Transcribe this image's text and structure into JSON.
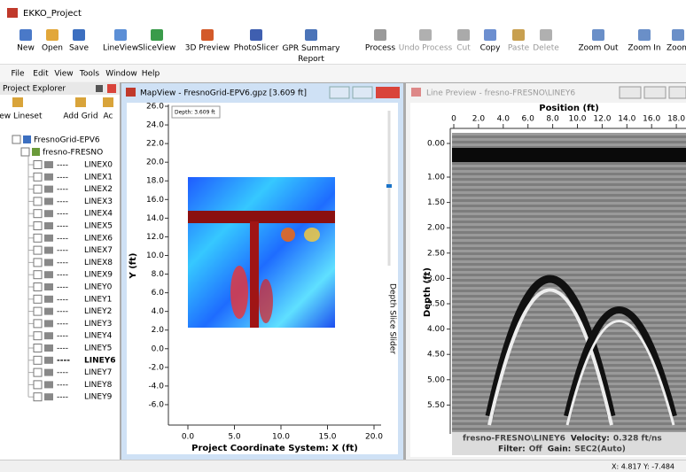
{
  "window": {
    "title": "EKKO_Project"
  },
  "toolbar": [
    "New",
    "Open",
    "Save",
    "LineView",
    "SliceView",
    "3D Preview",
    "PhotoSlicer",
    "GPR Summary Report",
    "Process",
    "Undo Process",
    "Cut",
    "Copy",
    "Paste",
    "Delete",
    "Zoom Out",
    "Zoom In",
    "Zoom"
  ],
  "menu": [
    "File",
    "Edit",
    "View",
    "Tools",
    "Window",
    "Help"
  ],
  "explorer": {
    "title": "Project Explorer",
    "buttons": [
      "New Lineset",
      "Add Grid",
      "Ac"
    ],
    "root": "FresnoGrid-EPV6",
    "group": "fresno-FRESNO",
    "lines": [
      {
        "status": "----",
        "name": "LINEX0"
      },
      {
        "status": "----",
        "name": "LINEX1"
      },
      {
        "status": "----",
        "name": "LINEX2"
      },
      {
        "status": "----",
        "name": "LINEX3"
      },
      {
        "status": "----",
        "name": "LINEX4"
      },
      {
        "status": "----",
        "name": "LINEX5"
      },
      {
        "status": "----",
        "name": "LINEX6"
      },
      {
        "status": "----",
        "name": "LINEX7"
      },
      {
        "status": "----",
        "name": "LINEX8"
      },
      {
        "status": "----",
        "name": "LINEX9"
      },
      {
        "status": "----",
        "name": "LINEY0"
      },
      {
        "status": "----",
        "name": "LINEY1"
      },
      {
        "status": "----",
        "name": "LINEY2"
      },
      {
        "status": "----",
        "name": "LINEY3"
      },
      {
        "status": "----",
        "name": "LINEY4"
      },
      {
        "status": "----",
        "name": "LINEY5"
      },
      {
        "status": "----",
        "name": "LINEY6",
        "bold": true
      },
      {
        "status": "----",
        "name": "LINEY7"
      },
      {
        "status": "----",
        "name": "LINEY8"
      },
      {
        "status": "----",
        "name": "LINEY9"
      }
    ]
  },
  "mapview": {
    "title": "MapView - FresnoGrid-EPV6.gpz [3.609 ft]",
    "depth_label": "Depth: 3.609 ft",
    "yticks": [
      "26.0",
      "24.0",
      "22.0",
      "20.0",
      "18.0",
      "16.0",
      "14.0",
      "12.0",
      "10.0",
      "8.0",
      "6.0",
      "4.0",
      "2.0",
      "0.0",
      "-2.0",
      "-4.0",
      "-6.0"
    ],
    "xticks": [
      "0.0",
      "5.0",
      "10.0",
      "15.0",
      "20.0"
    ],
    "ylabel": "Y (ft)",
    "xlabel": "Project Coordinate System: X (ft)",
    "slider_label": "Depth Slice Slider"
  },
  "line_preview": {
    "title": "Line Preview - fresno-FRESNO\\LINEY6",
    "xlabel": "Position (ft)",
    "xticks": [
      "0",
      "2.0",
      "4.0",
      "6.0",
      "8.0",
      "10.0",
      "12.0",
      "14.0",
      "16.0",
      "18.0"
    ],
    "ylabel": "Depth (ft)",
    "yticks": [
      "0.00",
      "1.00",
      "1.50",
      "2.00",
      "2.50",
      "3.00",
      "3.50",
      "4.00",
      "4.50",
      "5.00",
      "5.50"
    ],
    "footer": {
      "line": "fresno-FRESNO\\LINEY6",
      "velocity_label": "Velocity:",
      "velocity": "0.328 ft/ns",
      "filter_label": "Filter:",
      "filter": "Off",
      "gain_label": "Gain:",
      "gain": "SEC2(Auto)"
    }
  },
  "status": "X: 4.817  Y: -7.484"
}
